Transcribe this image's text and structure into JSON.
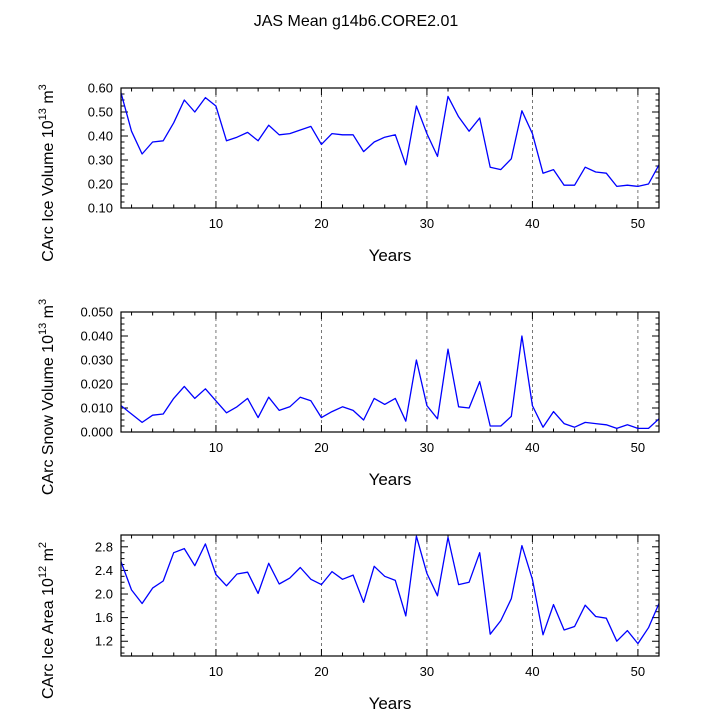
{
  "page_title": "JAS Mean g14b6.CORE2.01",
  "chart_data": [
    {
      "type": "line",
      "ylabel": {
        "main": "CArc Ice Volume 10",
        "exp": "13",
        "unit": " m",
        "unit_exp": "3"
      },
      "xlabel": "Years",
      "xlim": [
        1,
        52
      ],
      "ylim": [
        0.1,
        0.6
      ],
      "yticks": [
        0.1,
        0.2,
        0.3,
        0.4,
        0.5,
        0.6
      ],
      "ytick_labels": [
        "0.10",
        "0.20",
        "0.30",
        "0.40",
        "0.50",
        "0.60"
      ],
      "xticks": [
        10,
        20,
        30,
        40,
        50
      ],
      "xtick_labels": [
        "10",
        "20",
        "30",
        "40",
        "50"
      ],
      "color": "#0000ff",
      "series": [
        {
          "name": "CArc Ice Volume",
          "x": [
            1,
            2,
            3,
            4,
            5,
            6,
            7,
            8,
            9,
            10,
            11,
            12,
            13,
            14,
            15,
            16,
            17,
            18,
            19,
            20,
            21,
            22,
            23,
            24,
            25,
            26,
            27,
            28,
            29,
            30,
            31,
            32,
            33,
            34,
            35,
            36,
            37,
            38,
            39,
            40,
            41,
            42,
            43,
            44,
            45,
            46,
            47,
            48,
            49,
            50,
            51,
            52
          ],
          "values": [
            0.58,
            0.42,
            0.325,
            0.375,
            0.38,
            0.455,
            0.55,
            0.5,
            0.56,
            0.525,
            0.38,
            0.395,
            0.415,
            0.38,
            0.445,
            0.405,
            0.41,
            0.425,
            0.44,
            0.365,
            0.41,
            0.405,
            0.405,
            0.335,
            0.375,
            0.395,
            0.405,
            0.28,
            0.525,
            0.41,
            0.315,
            0.565,
            0.48,
            0.42,
            0.475,
            0.27,
            0.26,
            0.305,
            0.505,
            0.41,
            0.245,
            0.26,
            0.195,
            0.195,
            0.27,
            0.25,
            0.245,
            0.19,
            0.195,
            0.19,
            0.2,
            0.28
          ]
        }
      ]
    },
    {
      "type": "line",
      "ylabel": {
        "main": "CArc Snow Volume 10",
        "exp": "13",
        "unit": " m",
        "unit_exp": "3"
      },
      "xlabel": "Years",
      "xlim": [
        1,
        52
      ],
      "ylim": [
        0.0,
        0.05
      ],
      "yticks": [
        0.0,
        0.01,
        0.02,
        0.03,
        0.04,
        0.05
      ],
      "ytick_labels": [
        "0.000",
        "0.010",
        "0.020",
        "0.030",
        "0.040",
        "0.050"
      ],
      "xticks": [
        10,
        20,
        30,
        40,
        50
      ],
      "xtick_labels": [
        "10",
        "20",
        "30",
        "40",
        "50"
      ],
      "color": "#0000ff",
      "series": [
        {
          "name": "CArc Snow Volume",
          "x": [
            1,
            2,
            3,
            4,
            5,
            6,
            7,
            8,
            9,
            10,
            11,
            12,
            13,
            14,
            15,
            16,
            17,
            18,
            19,
            20,
            21,
            22,
            23,
            24,
            25,
            26,
            27,
            28,
            29,
            30,
            31,
            32,
            33,
            34,
            35,
            36,
            37,
            38,
            39,
            40,
            41,
            42,
            43,
            44,
            45,
            46,
            47,
            48,
            49,
            50,
            51,
            52
          ],
          "values": [
            0.011,
            0.0075,
            0.004,
            0.007,
            0.0075,
            0.014,
            0.019,
            0.014,
            0.018,
            0.013,
            0.008,
            0.0105,
            0.014,
            0.006,
            0.0145,
            0.009,
            0.0105,
            0.0145,
            0.013,
            0.006,
            0.0085,
            0.0105,
            0.009,
            0.005,
            0.014,
            0.0115,
            0.014,
            0.0045,
            0.03,
            0.011,
            0.0055,
            0.0345,
            0.0105,
            0.01,
            0.021,
            0.0025,
            0.0025,
            0.0065,
            0.04,
            0.011,
            0.002,
            0.0085,
            0.0035,
            0.002,
            0.004,
            0.0035,
            0.003,
            0.0015,
            0.003,
            0.0015,
            0.0015,
            0.0055
          ]
        }
      ]
    },
    {
      "type": "line",
      "ylabel": {
        "main": "CArc Ice Area 10",
        "exp": "12",
        "unit": " m",
        "unit_exp": "2"
      },
      "xlabel": "Years",
      "xlim": [
        1,
        52
      ],
      "ylim": [
        0.95,
        3.0
      ],
      "yticks": [
        1.2,
        1.6,
        2.0,
        2.4,
        2.8
      ],
      "ytick_labels": [
        "1.2",
        "1.6",
        "2.0",
        "2.4",
        "2.8"
      ],
      "xticks": [
        10,
        20,
        30,
        40,
        50
      ],
      "xtick_labels": [
        "10",
        "20",
        "30",
        "40",
        "50"
      ],
      "color": "#0000ff",
      "series": [
        {
          "name": "CArc Ice Area",
          "x": [
            1,
            2,
            3,
            4,
            5,
            6,
            7,
            8,
            9,
            10,
            11,
            12,
            13,
            14,
            15,
            16,
            17,
            18,
            19,
            20,
            21,
            22,
            23,
            24,
            25,
            26,
            27,
            28,
            29,
            30,
            31,
            32,
            33,
            34,
            35,
            36,
            37,
            38,
            39,
            40,
            41,
            42,
            43,
            44,
            45,
            46,
            47,
            48,
            49,
            50,
            51,
            52
          ],
          "values": [
            2.55,
            2.07,
            1.84,
            2.1,
            2.22,
            2.7,
            2.77,
            2.48,
            2.85,
            2.33,
            2.14,
            2.34,
            2.37,
            2.01,
            2.52,
            2.17,
            2.27,
            2.45,
            2.25,
            2.16,
            2.38,
            2.25,
            2.32,
            1.86,
            2.47,
            2.3,
            2.23,
            1.63,
            2.98,
            2.35,
            1.97,
            2.96,
            2.16,
            2.2,
            2.7,
            1.32,
            1.55,
            1.92,
            2.82,
            2.25,
            1.31,
            1.82,
            1.39,
            1.45,
            1.81,
            1.62,
            1.59,
            1.2,
            1.38,
            1.16,
            1.43,
            1.84
          ]
        }
      ]
    }
  ]
}
